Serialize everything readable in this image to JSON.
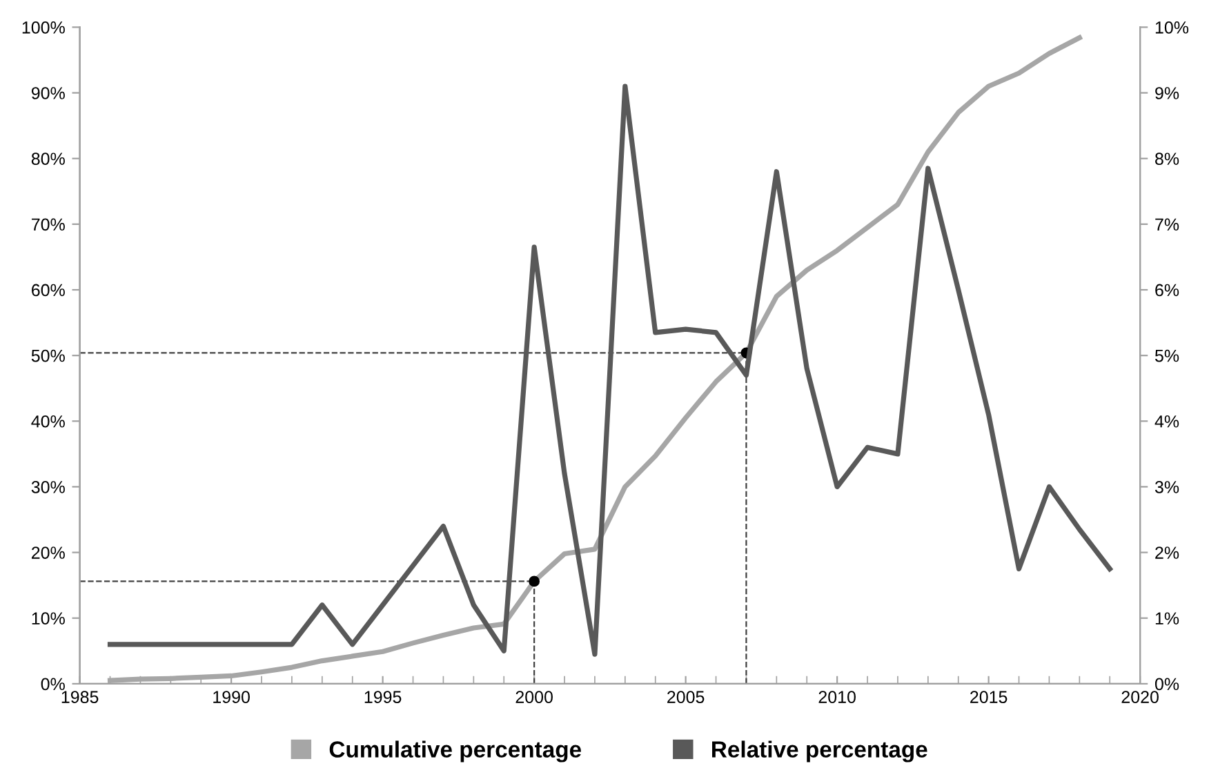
{
  "chart_data": {
    "type": "line",
    "x": [
      1986,
      1987,
      1988,
      1989,
      1990,
      1991,
      1992,
      1993,
      1994,
      1995,
      1996,
      1997,
      1998,
      1999,
      2000,
      2001,
      2002,
      2003,
      2004,
      2005,
      2006,
      2007,
      2008,
      2009,
      2010,
      2011,
      2012,
      2013,
      2014,
      2015,
      2016,
      2017,
      2018,
      2019
    ],
    "series": [
      {
        "name": "Cumulative percentage",
        "color": "#a6a6a6",
        "x": [
          1986,
          1987,
          1988,
          1989,
          1990,
          1991,
          1992,
          1993,
          1994,
          1995,
          1996,
          1997,
          1998,
          1999,
          2000,
          2001,
          2002,
          2003,
          2004,
          2005,
          2006,
          2007,
          2008,
          2009,
          2010,
          2011,
          2012,
          2013,
          2014,
          2015,
          2016,
          2017,
          2018
        ],
        "values": [
          0.5,
          0.7,
          0.8,
          1.0,
          1.2,
          1.8,
          2.5,
          3.5,
          4.2,
          4.9,
          6.2,
          7.4,
          8.5,
          9.1,
          15.6,
          19.8,
          20.5,
          30,
          34.7,
          40.5,
          46,
          50.4,
          59,
          63,
          66,
          69.5,
          73,
          81,
          87,
          91,
          93,
          96,
          98.4
        ]
      },
      {
        "name": "Relative percentage",
        "color": "#595959",
        "axis": "y2",
        "values": [
          0.6,
          0.6,
          0.6,
          0.6,
          0.6,
          0.6,
          0.6,
          1.2,
          0.6,
          1.2,
          1.8,
          2.4,
          1.2,
          0.5,
          6.65,
          3.2,
          0.45,
          9.1,
          5.35,
          5.4,
          5.35,
          4.7,
          7.8,
          4.8,
          3.0,
          3.6,
          3.5,
          7.85,
          6.0,
          4.1,
          1.75,
          3.0,
          2.35,
          1.75
        ]
      },
      {
        "type": "scatter",
        "marker": "circle",
        "color": "#000000",
        "x": [
          2000,
          2007
        ],
        "values": [
          15.6,
          50.4
        ]
      }
    ],
    "xlim": [
      1985,
      2020
    ],
    "xticks": [
      1985,
      1990,
      1995,
      2000,
      2005,
      2010,
      2015,
      2020
    ],
    "ylim": [
      0,
      100
    ],
    "yticks": [
      {
        "value": 0,
        "label": "0%"
      },
      {
        "value": 10,
        "label": "10%"
      },
      {
        "value": 20,
        "label": "20%"
      },
      {
        "value": 30,
        "label": "30%"
      },
      {
        "value": 40,
        "label": "40%"
      },
      {
        "value": 50,
        "label": "50%"
      },
      {
        "value": 60,
        "label": "60%"
      },
      {
        "value": 70,
        "label": "70%"
      },
      {
        "value": 80,
        "label": "80%"
      },
      {
        "value": 90,
        "label": "90%"
      },
      {
        "value": 100,
        "label": "100%"
      }
    ],
    "y2lim": [
      0,
      10
    ],
    "y2ticks": [
      {
        "value": 0,
        "label": "0%"
      },
      {
        "value": 1,
        "label": "1%"
      },
      {
        "value": 2,
        "label": "2%"
      },
      {
        "value": 3,
        "label": "3%"
      },
      {
        "value": 4,
        "label": "4%"
      },
      {
        "value": 5,
        "label": "5%"
      },
      {
        "value": 6,
        "label": "6%"
      },
      {
        "value": 7,
        "label": "7%"
      },
      {
        "value": 8,
        "label": "8%"
      },
      {
        "value": 9,
        "label": "9%"
      },
      {
        "value": 10,
        "label": "10%"
      }
    ],
    "ref_lines": [
      {
        "axis": "y",
        "value": 15.6,
        "color": "#404040",
        "line_style": "dashed"
      },
      {
        "axis": "y",
        "value": 50.4,
        "color": "#404040",
        "line_style": "dashed"
      },
      {
        "axis": "x",
        "value": 2000,
        "color": "#404040",
        "line_style": "dashed"
      },
      {
        "axis": "x",
        "value": 2007,
        "color": "#404040",
        "line_style": "dashed"
      }
    ],
    "grid": false,
    "legend": "bottom",
    "marker": "none",
    "line_style": "solid"
  }
}
